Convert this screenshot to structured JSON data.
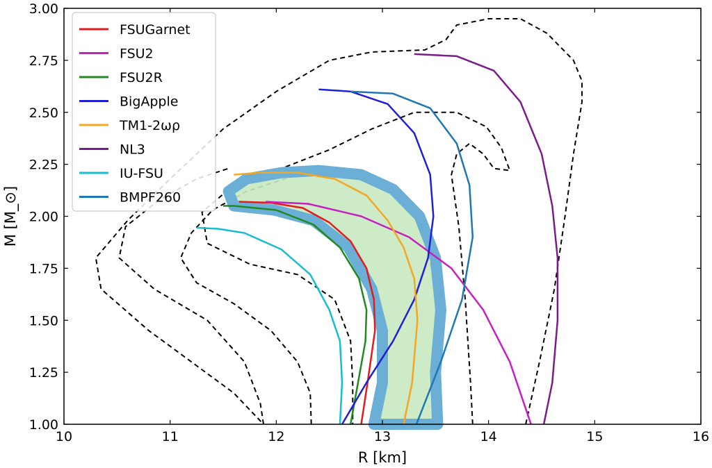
{
  "chart_data": {
    "type": "line",
    "title": "",
    "xlabel": "R [km]",
    "ylabel": "M [M_⊙]",
    "xlim": [
      10,
      16
    ],
    "ylim": [
      1.0,
      3.0
    ],
    "x_ticks": [
      10,
      11,
      12,
      13,
      14,
      15,
      16
    ],
    "x_tick_labels": [
      "10",
      "11",
      "12",
      "13",
      "14",
      "15",
      "16"
    ],
    "y_ticks": [
      1.0,
      1.25,
      1.5,
      1.75,
      2.0,
      2.25,
      2.5,
      2.75,
      3.0
    ],
    "y_tick_labels": [
      "1.00",
      "1.25",
      "1.50",
      "1.75",
      "2.00",
      "2.25",
      "2.50",
      "2.75",
      "3.00"
    ],
    "grid": false,
    "legend_position": "top-left",
    "series": [
      {
        "name": "FSUGarnet",
        "color": "#e41a1c",
        "points": [
          [
            12.8,
            1.0
          ],
          [
            12.86,
            1.2
          ],
          [
            12.93,
            1.45
          ],
          [
            12.92,
            1.6
          ],
          [
            12.85,
            1.75
          ],
          [
            12.7,
            1.88
          ],
          [
            12.5,
            1.97
          ],
          [
            12.25,
            2.04
          ],
          [
            11.95,
            2.065
          ],
          [
            11.65,
            2.07
          ]
        ]
      },
      {
        "name": "FSU2",
        "color": "#c71fbf",
        "points": [
          [
            14.4,
            1.0
          ],
          [
            14.2,
            1.3
          ],
          [
            13.95,
            1.55
          ],
          [
            13.65,
            1.75
          ],
          [
            13.25,
            1.9
          ],
          [
            12.8,
            2.0
          ],
          [
            12.3,
            2.06
          ],
          [
            11.9,
            2.07
          ]
        ]
      },
      {
        "name": "FSU2R",
        "color": "#208a20",
        "points": [
          [
            12.7,
            1.0
          ],
          [
            12.77,
            1.2
          ],
          [
            12.84,
            1.4
          ],
          [
            12.85,
            1.55
          ],
          [
            12.78,
            1.7
          ],
          [
            12.6,
            1.85
          ],
          [
            12.35,
            1.96
          ],
          [
            12.0,
            2.03
          ],
          [
            11.6,
            2.05
          ],
          [
            11.5,
            2.05
          ]
        ]
      },
      {
        "name": "BigApple",
        "color": "#1f1fd6",
        "points": [
          [
            12.62,
            1.0
          ],
          [
            12.85,
            1.2
          ],
          [
            13.1,
            1.4
          ],
          [
            13.3,
            1.6
          ],
          [
            13.43,
            1.8
          ],
          [
            13.48,
            2.0
          ],
          [
            13.45,
            2.2
          ],
          [
            13.3,
            2.4
          ],
          [
            13.05,
            2.54
          ],
          [
            12.7,
            2.6
          ],
          [
            12.4,
            2.61
          ]
        ]
      },
      {
        "name": "TM1-2ωρ",
        "color": "#f5a623",
        "points": [
          [
            13.2,
            1.0
          ],
          [
            13.28,
            1.2
          ],
          [
            13.33,
            1.5
          ],
          [
            13.3,
            1.7
          ],
          [
            13.2,
            1.85
          ],
          [
            13.05,
            1.98
          ],
          [
            12.85,
            2.1
          ],
          [
            12.55,
            2.18
          ],
          [
            12.2,
            2.21
          ],
          [
            11.85,
            2.21
          ],
          [
            11.6,
            2.2
          ]
        ]
      },
      {
        "name": "NL3",
        "color": "#7b1b8c",
        "points": [
          [
            14.52,
            1.0
          ],
          [
            14.6,
            1.2
          ],
          [
            14.65,
            1.5
          ],
          [
            14.65,
            1.8
          ],
          [
            14.6,
            2.05
          ],
          [
            14.5,
            2.3
          ],
          [
            14.3,
            2.55
          ],
          [
            14.05,
            2.7
          ],
          [
            13.7,
            2.77
          ],
          [
            13.3,
            2.78
          ]
        ]
      },
      {
        "name": "IU-FSU",
        "color": "#17becf",
        "points": [
          [
            12.6,
            1.0
          ],
          [
            12.62,
            1.2
          ],
          [
            12.6,
            1.4
          ],
          [
            12.5,
            1.55
          ],
          [
            12.32,
            1.72
          ],
          [
            12.05,
            1.84
          ],
          [
            11.7,
            1.92
          ],
          [
            11.45,
            1.94
          ],
          [
            11.25,
            1.945
          ]
        ]
      },
      {
        "name": "BMPF260",
        "color": "#1f77b4",
        "points": [
          [
            13.32,
            1.0
          ],
          [
            13.55,
            1.3
          ],
          [
            13.75,
            1.6
          ],
          [
            13.85,
            1.9
          ],
          [
            13.82,
            2.15
          ],
          [
            13.7,
            2.35
          ],
          [
            13.45,
            2.52
          ],
          [
            13.1,
            2.59
          ],
          [
            12.7,
            2.6
          ]
        ]
      }
    ],
    "band": {
      "color": "#6baed6",
      "fill": "#c7e9c0",
      "outline": [
        [
          12.92,
          1.0
        ],
        [
          13.0,
          1.2
        ],
        [
          13.0,
          1.45
        ],
        [
          12.9,
          1.65
        ],
        [
          12.68,
          1.85
        ],
        [
          12.35,
          1.98
        ],
        [
          11.98,
          2.03
        ],
        [
          11.6,
          2.05
        ],
        [
          11.55,
          2.12
        ],
        [
          11.72,
          2.18
        ],
        [
          12.05,
          2.21
        ],
        [
          12.4,
          2.22
        ],
        [
          12.8,
          2.2
        ],
        [
          13.1,
          2.13
        ],
        [
          13.35,
          2.0
        ],
        [
          13.5,
          1.8
        ],
        [
          13.55,
          1.55
        ],
        [
          13.5,
          1.25
        ],
        [
          13.52,
          1.0
        ]
      ]
    },
    "contours": [
      {
        "style": "dashed",
        "color": "#000000",
        "points": [
          [
            11.88,
            1.0
          ],
          [
            11.85,
            1.1
          ],
          [
            11.7,
            1.3
          ],
          [
            11.35,
            1.5
          ],
          [
            10.85,
            1.65
          ],
          [
            10.52,
            1.8
          ],
          [
            10.58,
            1.95
          ],
          [
            10.9,
            2.08
          ],
          [
            11.25,
            2.18
          ],
          [
            11.55,
            2.23
          ]
        ]
      },
      {
        "style": "dashed",
        "color": "#000000",
        "points": [
          [
            12.33,
            1.0
          ],
          [
            12.32,
            1.15
          ],
          [
            12.2,
            1.3
          ],
          [
            11.95,
            1.45
          ],
          [
            11.6,
            1.58
          ],
          [
            11.25,
            1.68
          ],
          [
            11.1,
            1.8
          ],
          [
            11.2,
            1.92
          ],
          [
            11.4,
            2.03
          ],
          [
            11.72,
            2.12
          ],
          [
            12.2,
            2.2
          ],
          [
            12.6,
            2.21
          ],
          [
            12.95,
            2.18
          ],
          [
            13.22,
            2.08
          ],
          [
            13.4,
            1.9
          ],
          [
            13.5,
            1.65
          ],
          [
            13.5,
            1.35
          ],
          [
            13.47,
            1.0
          ]
        ]
      },
      {
        "style": "dashed",
        "color": "#000000",
        "points": [
          [
            13.85,
            1.0
          ],
          [
            13.83,
            1.2
          ],
          [
            13.78,
            1.6
          ],
          [
            13.72,
            1.95
          ],
          [
            13.65,
            2.2
          ],
          [
            13.7,
            2.3
          ],
          [
            13.82,
            2.35
          ],
          [
            13.95,
            2.3
          ],
          [
            14.05,
            2.23
          ],
          [
            14.2,
            2.22
          ],
          [
            14.12,
            2.33
          ],
          [
            13.98,
            2.43
          ],
          [
            13.7,
            2.5
          ],
          [
            13.3,
            2.5
          ],
          [
            12.9,
            2.42
          ],
          [
            12.5,
            2.32
          ],
          [
            12.0,
            2.22
          ],
          [
            11.6,
            2.15
          ],
          [
            11.3,
            2.02
          ],
          [
            11.35,
            1.87
          ],
          [
            11.75,
            1.77
          ],
          [
            12.2,
            1.72
          ],
          [
            12.55,
            1.6
          ],
          [
            12.7,
            1.4
          ],
          [
            12.72,
            1.2
          ],
          [
            12.72,
            1.0
          ]
        ]
      },
      {
        "style": "dashed",
        "color": "#000000",
        "points": [
          [
            14.35,
            1.0
          ],
          [
            14.48,
            1.3
          ],
          [
            14.62,
            1.65
          ],
          [
            14.72,
            2.0
          ],
          [
            14.8,
            2.3
          ],
          [
            14.88,
            2.55
          ],
          [
            14.88,
            2.65
          ],
          [
            14.8,
            2.75
          ],
          [
            14.55,
            2.88
          ],
          [
            14.3,
            2.95
          ],
          [
            14.0,
            2.95
          ],
          [
            13.7,
            2.92
          ],
          [
            13.6,
            2.85
          ],
          [
            13.4,
            2.8
          ],
          [
            12.9,
            2.79
          ],
          [
            12.5,
            2.75
          ],
          [
            12.0,
            2.6
          ],
          [
            11.5,
            2.42
          ],
          [
            11.0,
            2.18
          ],
          [
            10.6,
            1.98
          ],
          [
            10.3,
            1.8
          ],
          [
            10.35,
            1.65
          ],
          [
            10.8,
            1.45
          ],
          [
            11.2,
            1.3
          ],
          [
            11.6,
            1.15
          ],
          [
            11.88,
            1.0
          ]
        ]
      }
    ]
  }
}
